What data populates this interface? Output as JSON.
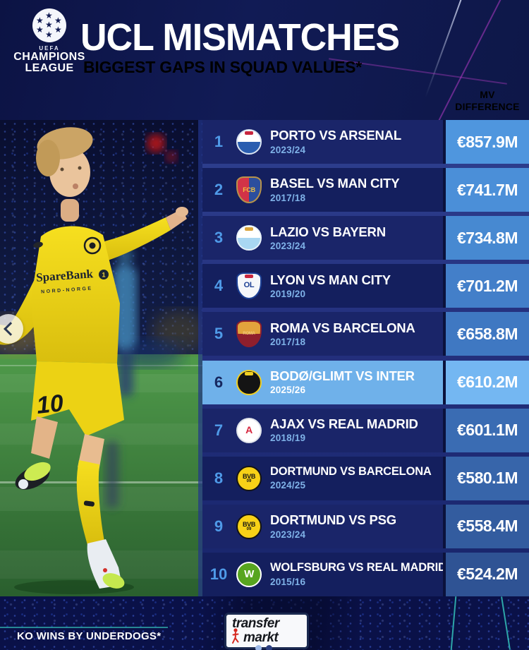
{
  "header": {
    "logo": {
      "org": "UEFA",
      "line1": "CHAMPIONS",
      "line2": "LEAGUE",
      "starball_icon": "starball-icon"
    },
    "title": "UCL MISMATCHES",
    "subtitle": "BIGGEST GAPS IN SQUAD VALUES*",
    "column_header": {
      "line1": "MV",
      "line2": "DIFFERENCE"
    }
  },
  "colors": {
    "page_bg": "#0e1750",
    "row_odd_bg": "#1a2569",
    "row_even_bg": "#141f5e",
    "row_highlight_bg": "#6fb1ea",
    "rank_color": "#4f9ae8",
    "rank_highlight_color": "#16275f",
    "season_color": "#7fb2e8",
    "season_highlight_color": "#ffffff",
    "name_color": "#ffffff",
    "value_text_color": "#ffffff",
    "subtitle_color": "#4f97e0",
    "column_header_color": "#7fb0e2",
    "accent_magenta": "#b13bc4",
    "accent_cyan": "#39d7c8"
  },
  "table": {
    "rows": [
      {
        "rank": "1",
        "match": "PORTO VS ARSENAL",
        "season": "2023/24",
        "value": "€857.9M",
        "highlighted": false,
        "value_bg": "#4f96de",
        "crest": {
          "name": "porto-crest",
          "shape": "circle",
          "bg": "#ffffff",
          "bg2": "#2a5db0",
          "split": "bottom",
          "ring": "#d9e4f2",
          "label": "",
          "accent": "#c8273f"
        }
      },
      {
        "rank": "2",
        "match": "BASEL VS MAN CITY",
        "season": "2017/18",
        "value": "€741.7M",
        "highlighted": false,
        "value_bg": "#4b8fd8",
        "crest": {
          "name": "basel-crest",
          "shape": "shield",
          "bg": "#d23347",
          "bg2": "#2b4e9e",
          "split": "right",
          "ring": "#b8934a",
          "label": "FCB",
          "label_color": "#f0c040",
          "label_size": 9
        }
      },
      {
        "rank": "3",
        "match": "LAZIO VS BAYERN",
        "season": "2023/24",
        "value": "€734.8M",
        "highlighted": false,
        "value_bg": "#4789d1",
        "crest": {
          "name": "lazio-crest",
          "shape": "circle",
          "bg": "#ffffff",
          "bg2": "#a9d7f2",
          "split": "bottom",
          "ring": "#e8f2fa",
          "label": "",
          "accent": "#d9a43c"
        }
      },
      {
        "rank": "4",
        "match": "LYON VS MAN CITY",
        "season": "2019/20",
        "value": "€701.2M",
        "highlighted": false,
        "value_bg": "#437fc9",
        "crest": {
          "name": "lyon-crest",
          "shape": "shield",
          "bg": "#f5f7fa",
          "ring": "#1b3f94",
          "label": "OL",
          "label_color": "#1b3f94",
          "label_size": 11,
          "accent": "#c8273f"
        }
      },
      {
        "rank": "5",
        "match": "ROMA VS BARCELONA",
        "season": "2017/18",
        "value": "€658.8M",
        "highlighted": false,
        "value_bg": "#3f78c2",
        "crest": {
          "name": "roma-crest",
          "shape": "shield",
          "bg": "#e2a33c",
          "bg2": "#8f1f2d",
          "split": "bottom",
          "ring": "#8f1f2d",
          "label": "ROMA",
          "label_color": "#f2c879",
          "label_size": 6
        }
      },
      {
        "rank": "6",
        "match": "BODØ/GLIMT VS INTER",
        "season": "2025/26",
        "value": "€610.2M",
        "highlighted": true,
        "value_bg": "#74b7f2",
        "crest": {
          "name": "bodo-glimt-crest",
          "shape": "circle",
          "bg": "#141414",
          "ring": "#f2d022",
          "label": "",
          "accent": "#f2d022"
        }
      },
      {
        "rank": "7",
        "match": "AJAX VS REAL MADRID",
        "season": "2018/19",
        "value": "€601.1M",
        "highlighted": false,
        "value_bg": "#3a6cb3",
        "crest": {
          "name": "ajax-crest",
          "shape": "circle",
          "bg": "#ffffff",
          "ring": "#dfe3ea",
          "label": "A",
          "label_color": "#d6263e",
          "label_size": 14
        }
      },
      {
        "rank": "8",
        "match": "DORTMUND VS BARCELONA",
        "season": "2024/25",
        "value": "€580.1M",
        "highlighted": false,
        "value_bg": "#3765aa",
        "crest": {
          "name": "dortmund-crest",
          "shape": "circle",
          "bg": "#f7d117",
          "ring": "#141414",
          "label": "BVB",
          "label_color": "#141414",
          "label_size": 9,
          "label2": "09"
        }
      },
      {
        "rank": "9",
        "match": "DORTMUND VS PSG",
        "season": "2023/24",
        "value": "€558.4M",
        "highlighted": false,
        "value_bg": "#335c9f",
        "crest": {
          "name": "dortmund-crest",
          "shape": "circle",
          "bg": "#f7d117",
          "ring": "#141414",
          "label": "BVB",
          "label_color": "#141414",
          "label_size": 9,
          "label2": "09"
        }
      },
      {
        "rank": "10",
        "match": "WOLFSBURG VS REAL MADRID",
        "season": "2015/16",
        "value": "€524.2M",
        "highlighted": false,
        "value_bg": "#2f5394",
        "crest": {
          "name": "wolfsburg-crest",
          "shape": "circle",
          "bg": "#57a51f",
          "ring": "#ffffff",
          "label": "W",
          "label_color": "#ffffff",
          "label_size": 15
        }
      }
    ]
  },
  "chart_data": {
    "type": "table",
    "title": "UCL MISMATCHES",
    "subtitle": "BIGGEST GAPS IN SQUAD VALUES*",
    "value_label": "MV DIFFERENCE",
    "unit": "€M",
    "highlighted_rank": 6,
    "footnote": "KO WINS BY UNDERDOGS*",
    "rows": [
      {
        "rank": 1,
        "match": "PORTO VS ARSENAL",
        "season": "2023/24",
        "mv_difference_m": 857.9
      },
      {
        "rank": 2,
        "match": "BASEL VS MAN CITY",
        "season": "2017/18",
        "mv_difference_m": 741.7
      },
      {
        "rank": 3,
        "match": "LAZIO VS BAYERN",
        "season": "2023/24",
        "mv_difference_m": 734.8
      },
      {
        "rank": 4,
        "match": "LYON VS MAN CITY",
        "season": "2019/20",
        "mv_difference_m": 701.2
      },
      {
        "rank": 5,
        "match": "ROMA VS BARCELONA",
        "season": "2017/18",
        "mv_difference_m": 658.8
      },
      {
        "rank": 6,
        "match": "BODØ/GLIMT VS INTER",
        "season": "2025/26",
        "mv_difference_m": 610.2
      },
      {
        "rank": 7,
        "match": "AJAX VS REAL MADRID",
        "season": "2018/19",
        "mv_difference_m": 601.1
      },
      {
        "rank": 8,
        "match": "DORTMUND VS BARCELONA",
        "season": "2024/25",
        "mv_difference_m": 580.1
      },
      {
        "rank": 9,
        "match": "DORTMUND VS PSG",
        "season": "2023/24",
        "mv_difference_m": 558.4
      },
      {
        "rank": 10,
        "match": "WOLFSBURG VS REAL MADRID",
        "season": "2015/16",
        "mv_difference_m": 524.2
      }
    ]
  },
  "photo": {
    "shirt_sponsor": "SpareBank",
    "shirt_sponsor_mark": "1",
    "shirt_sponsor_sub": "NORD-NORGE",
    "shirt_number": "10"
  },
  "footer": {
    "note": "KO WINS BY UNDERDOGS*",
    "brand": {
      "line1": "transfer",
      "line2": "markt"
    }
  }
}
